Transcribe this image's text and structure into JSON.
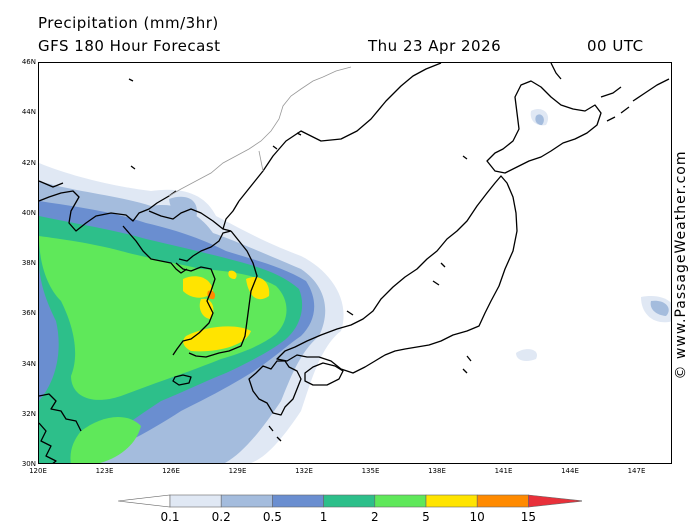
{
  "header": {
    "title": "Precipitation (mm/3hr)",
    "subtitle": "GFS 180 Hour Forecast",
    "date": "Thu 23 Apr 2026",
    "time": "00 UTC"
  },
  "map": {
    "lat_labels": [
      "46N",
      "44N",
      "42N",
      "40N",
      "38N",
      "36N",
      "34N",
      "32N",
      "30N"
    ],
    "lon_labels": [
      "120E",
      "123E",
      "126E",
      "129E",
      "132E",
      "135E",
      "138E",
      "141E",
      "144E",
      "147E"
    ],
    "credit": "© www.PassageWeather.com"
  },
  "legend": {
    "labels": [
      "0.1",
      "0.2",
      "0.5",
      "1",
      "2",
      "5",
      "10",
      "15"
    ],
    "colors": [
      "#ffffff",
      "#e0e8f4",
      "#a4bcdd",
      "#6a8ed0",
      "#2dbf8a",
      "#5fe85a",
      "#ffe400",
      "#ff8a00",
      "#e8303a"
    ]
  }
}
